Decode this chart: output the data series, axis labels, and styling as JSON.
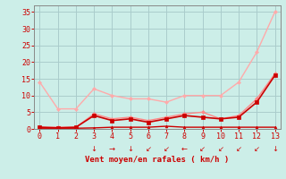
{
  "x": [
    0,
    1,
    2,
    3,
    4,
    5,
    6,
    7,
    8,
    9,
    10,
    11,
    12,
    13
  ],
  "series": [
    {
      "y": [
        14,
        6,
        6,
        12,
        10,
        9,
        9,
        8,
        10,
        10,
        10,
        14,
        23,
        35
      ],
      "color": "#ffaaaa",
      "lw": 1.0,
      "marker": "D",
      "ms": 2.0
    },
    {
      "y": [
        0.5,
        0.5,
        0.5,
        4.5,
        3.0,
        3.5,
        2.5,
        3.5,
        4.5,
        5.0,
        3.0,
        4.0,
        9.0,
        16.5
      ],
      "color": "#ff8888",
      "lw": 1.0,
      "marker": "D",
      "ms": 2.0
    },
    {
      "y": [
        0.5,
        0.3,
        0.5,
        4.0,
        2.5,
        3.0,
        2.0,
        3.0,
        4.0,
        3.5,
        3.0,
        3.5,
        8.0,
        16.0
      ],
      "color": "#cc0000",
      "lw": 1.2,
      "marker": "s",
      "ms": 2.5
    },
    {
      "y": [
        0.2,
        0.2,
        0.2,
        0.3,
        0.5,
        0.5,
        0.5,
        0.8,
        0.5,
        0.5,
        0.5,
        0.5,
        0.5,
        0.5
      ],
      "color": "#cc0000",
      "lw": 1.0,
      "marker": "^",
      "ms": 2.0
    }
  ],
  "wind_arrows": [
    "",
    "",
    "",
    "↓",
    "→",
    "↓",
    "↙",
    "↙",
    "←",
    "↙",
    "↙",
    "↙",
    "↙",
    "↓"
  ],
  "xlabel": "Vent moyen/en rafales ( km/h )",
  "ylim": [
    0,
    37
  ],
  "xlim": [
    -0.3,
    13.3
  ],
  "yticks": [
    0,
    5,
    10,
    15,
    20,
    25,
    30,
    35
  ],
  "xticks": [
    0,
    1,
    2,
    3,
    4,
    5,
    6,
    7,
    8,
    9,
    10,
    11,
    12,
    13
  ],
  "bg_color": "#cceee8",
  "grid_color": "#aacccc",
  "text_color": "#cc0000",
  "tick_color": "#cc0000"
}
